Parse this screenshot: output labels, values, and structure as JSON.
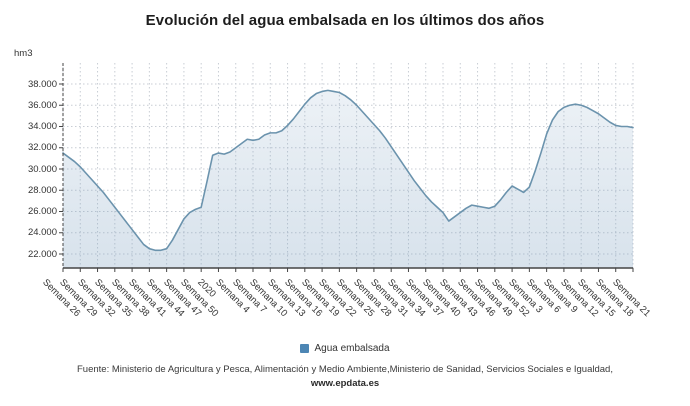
{
  "title": "Evolución del agua embalsada en los últimos dos años",
  "y_axis_unit": "hm3",
  "legend": {
    "label": "Agua embalsada",
    "marker_color": "#4d86b4"
  },
  "footer": {
    "source_line": "Fuente: Ministerio de Agricultura y Pesca, Alimentación y Medio Ambiente,Ministerio de Sanidad, Servicios Sociales e Igualdad,",
    "website": "www.epdata.es"
  },
  "colors": {
    "line": "#6b93ad",
    "area_top": "rgba(125,160,192,0.14)",
    "area_bottom": "rgba(125,160,192,0.30)",
    "grid": "#c8cdd4",
    "axis": "#444444"
  },
  "chart_data": {
    "type": "area",
    "title": "Evolución del agua embalsada en los últimos dos años",
    "ylabel": "hm3",
    "ylim": [
      20700,
      40000
    ],
    "grid": true,
    "legend_position": "bottom",
    "series_name": "Agua embalsada",
    "y_ticks": [
      22000,
      24000,
      26000,
      28000,
      30000,
      32000,
      34000,
      36000,
      38000
    ],
    "y_tick_labels": [
      "22.000",
      "24.000",
      "26.000",
      "28.000",
      "30.000",
      "32.000",
      "34.000",
      "36.000",
      "38.000"
    ],
    "x_tick_labels": [
      "Semana 26",
      "Semana 29",
      "Semana 32",
      "Semana 35",
      "Semana 38",
      "Semana 41",
      "Semana 44",
      "Semana 47",
      "Semana 50",
      "2020",
      "Semana 4",
      "Semana 7",
      "Semana 10",
      "Semana 13",
      "Semana 16",
      "Semana 19",
      "Semana 22",
      "Semana 25",
      "Semana 28",
      "Semana 31",
      "Semana 34",
      "Semana 37",
      "Semana 40",
      "Semana 43",
      "Semana 46",
      "Semana 49",
      "Semana 52",
      "Semana 3",
      "Semana 6",
      "Semana 9",
      "Semana 12",
      "Semana 15",
      "Semana 18",
      "Semana 21"
    ],
    "x_points_per_tick": 3,
    "values": [
      31500,
      31100,
      30700,
      30200,
      29600,
      29000,
      28400,
      27800,
      27100,
      26400,
      25700,
      25000,
      24300,
      23600,
      22900,
      22500,
      22350,
      22350,
      22500,
      23300,
      24300,
      25300,
      25900,
      26200,
      26400,
      28800,
      31300,
      31500,
      31400,
      31600,
      32000,
      32400,
      32800,
      32700,
      32800,
      33200,
      33400,
      33400,
      33600,
      34100,
      34700,
      35400,
      36100,
      36700,
      37100,
      37300,
      37400,
      37300,
      37200,
      36900,
      36500,
      36000,
      35400,
      34800,
      34200,
      33600,
      32900,
      32100,
      31300,
      30500,
      29700,
      28900,
      28200,
      27500,
      26900,
      26400,
      25900,
      25100,
      25500,
      25900,
      26300,
      26600,
      26500,
      26400,
      26300,
      26500,
      27100,
      27800,
      28400,
      28100,
      27800,
      28300,
      29800,
      31500,
      33300,
      34600,
      35400,
      35800,
      36000,
      36100,
      36000,
      35800,
      35500,
      35200,
      34800,
      34400,
      34100,
      34000,
      34000,
      33900
    ]
  }
}
